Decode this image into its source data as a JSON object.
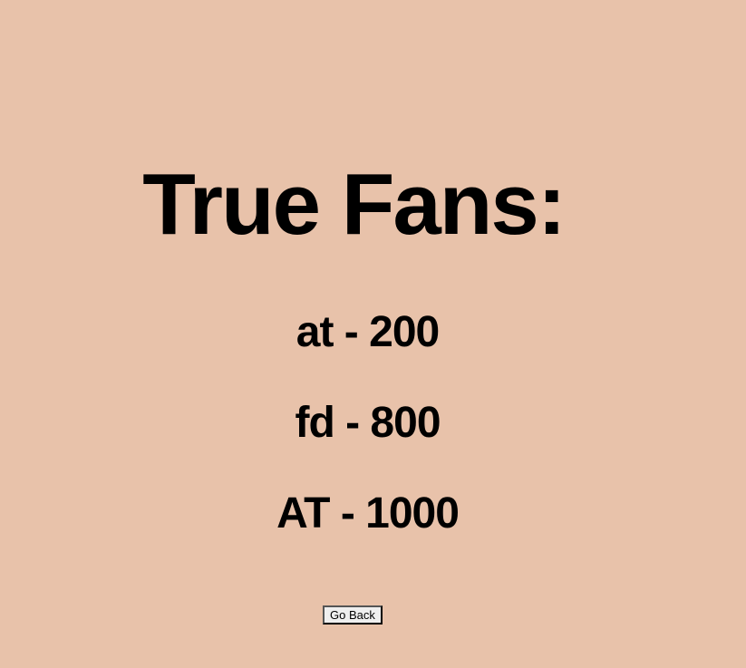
{
  "page": {
    "title": "True Fans:",
    "fans": [
      {
        "text": "at - 200"
      },
      {
        "text": "fd - 800"
      },
      {
        "text": "AT - 1000"
      }
    ],
    "back_button_label": "Go Back"
  },
  "colors": {
    "background": "#e8c2aa",
    "text": "#000000"
  }
}
